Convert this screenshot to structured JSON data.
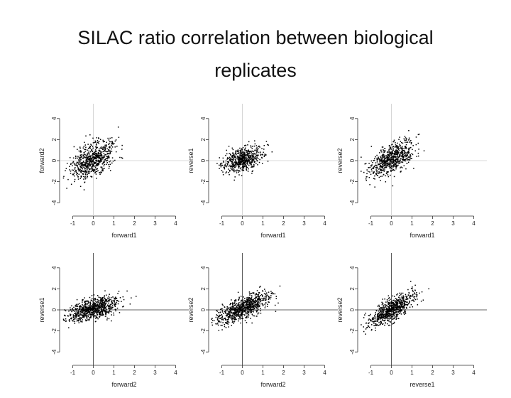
{
  "slide": {
    "title_line1": "SILAC ratio correlation between biological",
    "title_line2": "replicates"
  },
  "colors": {
    "points": "#000000",
    "axes": "#333333",
    "reference_lines": "#cccccc"
  },
  "chart_data": [
    {
      "type": "scatter",
      "xlabel": "forward1",
      "ylabel": "forward2",
      "xlim": [
        -1.5,
        4.5
      ],
      "ylim": [
        -5,
        5
      ],
      "xticks": [
        -1,
        0,
        1,
        2,
        3,
        4
      ],
      "yticks": [
        -4,
        -2,
        0,
        2,
        4
      ],
      "reference_lines": "faint",
      "cloud": {
        "center": [
          0,
          0.1
        ],
        "spread": [
          0.55,
          0.9
        ],
        "correlation": 0.55,
        "count": 700
      }
    },
    {
      "type": "scatter",
      "xlabel": "forward1",
      "ylabel": "reverse1",
      "xlim": [
        -1.5,
        4.5
      ],
      "ylim": [
        -5,
        5
      ],
      "xticks": [
        -1,
        0,
        1,
        2,
        3,
        4
      ],
      "yticks": [
        -4,
        -2,
        0,
        2,
        4
      ],
      "reference_lines": "faint",
      "cloud": {
        "center": [
          0,
          0.1
        ],
        "spread": [
          0.5,
          0.6
        ],
        "correlation": 0.45,
        "count": 600
      }
    },
    {
      "type": "scatter",
      "xlabel": "forward1",
      "ylabel": "reverse2",
      "xlim": [
        -1.5,
        4.5
      ],
      "ylim": [
        -5,
        5
      ],
      "xticks": [
        -1,
        0,
        1,
        2,
        3,
        4
      ],
      "yticks": [
        -4,
        -2,
        0,
        2,
        4
      ],
      "reference_lines": "faint",
      "cloud": {
        "center": [
          0,
          0.1
        ],
        "spread": [
          0.55,
          0.9
        ],
        "correlation": 0.6,
        "count": 700
      }
    },
    {
      "type": "scatter",
      "xlabel": "forward2",
      "ylabel": "reverse1",
      "xlim": [
        -1.5,
        4.5
      ],
      "ylim": [
        -5,
        5
      ],
      "xticks": [
        -1,
        0,
        1,
        2,
        3,
        4
      ],
      "yticks": [
        -4,
        -2,
        0,
        2,
        4
      ],
      "reference_lines": "dark",
      "cloud": {
        "center": [
          0,
          0.1
        ],
        "spread": [
          0.65,
          0.6
        ],
        "correlation": 0.55,
        "count": 800
      }
    },
    {
      "type": "scatter",
      "xlabel": "forward2",
      "ylabel": "reverse2",
      "xlim": [
        -1.5,
        4.5
      ],
      "ylim": [
        -5,
        5
      ],
      "xticks": [
        -1,
        0,
        1,
        2,
        3,
        4
      ],
      "yticks": [
        -4,
        -2,
        0,
        2,
        4
      ],
      "reference_lines": "dark",
      "cloud": {
        "center": [
          0,
          0.1
        ],
        "spread": [
          0.65,
          0.75
        ],
        "correlation": 0.7,
        "count": 800
      }
    },
    {
      "type": "scatter",
      "xlabel": "reverse1",
      "ylabel": "reverse2",
      "xlim": [
        -1.5,
        4.5
      ],
      "ylim": [
        -5,
        5
      ],
      "xticks": [
        -1,
        0,
        1,
        2,
        3,
        4
      ],
      "yticks": [
        -4,
        -2,
        0,
        2,
        4
      ],
      "reference_lines": "dark",
      "cloud": {
        "center": [
          0,
          0.0
        ],
        "spread": [
          0.55,
          0.8
        ],
        "correlation": 0.75,
        "count": 750
      }
    }
  ]
}
